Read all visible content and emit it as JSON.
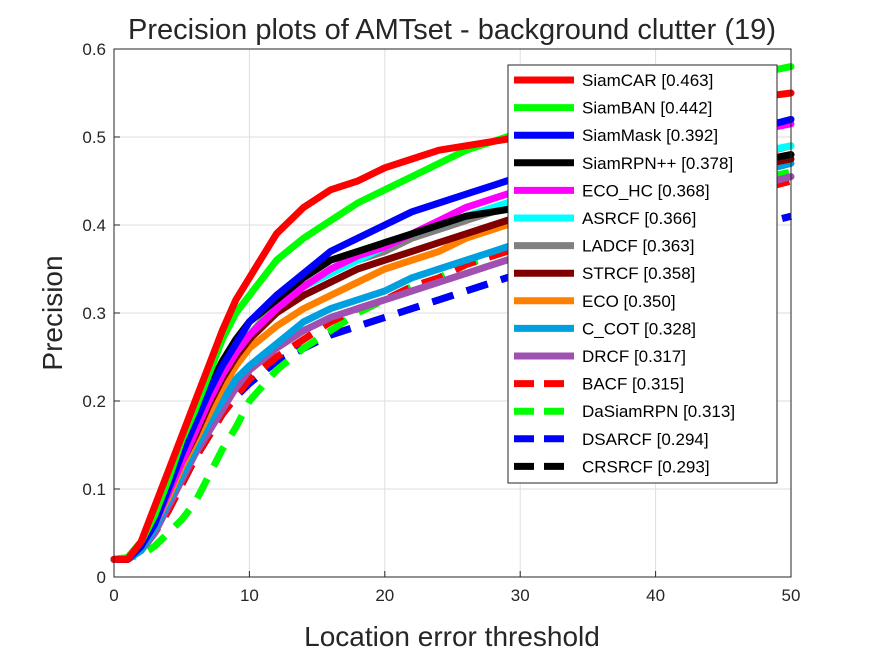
{
  "chart_data": {
    "type": "line",
    "title": "Precision plots of AMTset - background clutter (19)",
    "xlabel": "Location error threshold",
    "ylabel": "Precision",
    "xlim": [
      0,
      50
    ],
    "ylim": [
      0,
      0.6
    ],
    "x_ticks": [
      "0",
      "10",
      "20",
      "30",
      "40",
      "50"
    ],
    "y_ticks": [
      "0",
      "0.1",
      "0.2",
      "0.3",
      "0.4",
      "0.5",
      "0.6"
    ],
    "grid": true,
    "legend_position": "top-right",
    "x": [
      0,
      1,
      2,
      3,
      4,
      5,
      6,
      7,
      8,
      9,
      10,
      12,
      14,
      16,
      18,
      20,
      22,
      24,
      26,
      28,
      30,
      35,
      40,
      45,
      50
    ],
    "series": [
      {
        "name": "SiamCAR [0.463]",
        "color": "#ff0000",
        "dash": "solid",
        "values": [
          0.02,
          0.02,
          0.04,
          0.08,
          0.12,
          0.16,
          0.2,
          0.24,
          0.28,
          0.315,
          0.34,
          0.39,
          0.42,
          0.44,
          0.45,
          0.465,
          0.475,
          0.485,
          0.49,
          0.495,
          0.5,
          0.52,
          0.53,
          0.54,
          0.55
        ]
      },
      {
        "name": "SiamBAN [0.442]",
        "color": "#00ff00",
        "dash": "solid",
        "values": [
          0.02,
          0.022,
          0.04,
          0.07,
          0.11,
          0.155,
          0.19,
          0.23,
          0.27,
          0.3,
          0.32,
          0.36,
          0.385,
          0.405,
          0.425,
          0.44,
          0.455,
          0.47,
          0.485,
          0.495,
          0.505,
          0.53,
          0.55,
          0.565,
          0.58
        ]
      },
      {
        "name": "SiamMask [0.392]",
        "color": "#0000ff",
        "dash": "solid",
        "values": [
          0.02,
          0.02,
          0.035,
          0.06,
          0.1,
          0.14,
          0.175,
          0.21,
          0.24,
          0.265,
          0.29,
          0.32,
          0.345,
          0.37,
          0.385,
          0.4,
          0.415,
          0.425,
          0.435,
          0.445,
          0.455,
          0.47,
          0.485,
          0.5,
          0.52
        ]
      },
      {
        "name": "SiamRPN++ [0.378]",
        "color": "#000000",
        "dash": "solid",
        "values": [
          0.02,
          0.02,
          0.035,
          0.065,
          0.1,
          0.14,
          0.18,
          0.215,
          0.245,
          0.27,
          0.29,
          0.315,
          0.34,
          0.36,
          0.37,
          0.38,
          0.39,
          0.4,
          0.41,
          0.415,
          0.42,
          0.435,
          0.45,
          0.465,
          0.48
        ]
      },
      {
        "name": "ECO_HC [0.368]",
        "color": "#ff00ff",
        "dash": "solid",
        "values": [
          0.02,
          0.02,
          0.035,
          0.06,
          0.095,
          0.13,
          0.165,
          0.2,
          0.23,
          0.255,
          0.275,
          0.305,
          0.33,
          0.35,
          0.365,
          0.375,
          0.39,
          0.405,
          0.42,
          0.43,
          0.44,
          0.46,
          0.48,
          0.5,
          0.515
        ]
      },
      {
        "name": "ASRCF [0.366]",
        "color": "#00ffff",
        "dash": "solid",
        "values": [
          0.02,
          0.02,
          0.035,
          0.06,
          0.095,
          0.13,
          0.165,
          0.2,
          0.23,
          0.255,
          0.275,
          0.305,
          0.33,
          0.345,
          0.36,
          0.375,
          0.39,
          0.4,
          0.41,
          0.42,
          0.43,
          0.445,
          0.46,
          0.475,
          0.49
        ]
      },
      {
        "name": "LADCF [0.363]",
        "color": "#808080",
        "dash": "solid",
        "values": [
          0.02,
          0.02,
          0.035,
          0.06,
          0.095,
          0.13,
          0.165,
          0.2,
          0.23,
          0.255,
          0.275,
          0.31,
          0.33,
          0.345,
          0.36,
          0.37,
          0.385,
          0.395,
          0.405,
          0.415,
          0.425,
          0.44,
          0.455,
          0.465,
          0.48
        ]
      },
      {
        "name": "STRCF [0.358]",
        "color": "#800000",
        "dash": "solid",
        "values": [
          0.02,
          0.02,
          0.035,
          0.06,
          0.095,
          0.13,
          0.16,
          0.195,
          0.225,
          0.25,
          0.27,
          0.3,
          0.32,
          0.335,
          0.35,
          0.36,
          0.37,
          0.38,
          0.39,
          0.4,
          0.41,
          0.43,
          0.445,
          0.46,
          0.475
        ]
      },
      {
        "name": "ECO [0.350]",
        "color": "#ff8000",
        "dash": "solid",
        "values": [
          0.02,
          0.02,
          0.035,
          0.06,
          0.09,
          0.125,
          0.155,
          0.185,
          0.215,
          0.24,
          0.26,
          0.285,
          0.305,
          0.32,
          0.335,
          0.35,
          0.36,
          0.37,
          0.385,
          0.395,
          0.405,
          0.43,
          0.45,
          0.47,
          0.49
        ]
      },
      {
        "name": "C_COT [0.328]",
        "color": "#00a0e0",
        "dash": "solid",
        "values": [
          0.02,
          0.02,
          0.03,
          0.055,
          0.085,
          0.115,
          0.145,
          0.175,
          0.2,
          0.225,
          0.24,
          0.265,
          0.29,
          0.305,
          0.315,
          0.325,
          0.34,
          0.35,
          0.36,
          0.37,
          0.38,
          0.405,
          0.43,
          0.45,
          0.47
        ]
      },
      {
        "name": "DRCF [0.317]",
        "color": "#a050b0",
        "dash": "solid",
        "values": [
          0.02,
          0.02,
          0.03,
          0.05,
          0.08,
          0.11,
          0.14,
          0.165,
          0.19,
          0.215,
          0.235,
          0.26,
          0.28,
          0.295,
          0.305,
          0.315,
          0.325,
          0.335,
          0.345,
          0.355,
          0.365,
          0.39,
          0.41,
          0.435,
          0.455
        ]
      },
      {
        "name": "BACF [0.315]",
        "color": "#ff0000",
        "dash": "dashed",
        "values": [
          0.02,
          0.02,
          0.03,
          0.05,
          0.075,
          0.105,
          0.135,
          0.16,
          0.185,
          0.205,
          0.225,
          0.25,
          0.27,
          0.29,
          0.305,
          0.315,
          0.33,
          0.34,
          0.355,
          0.365,
          0.375,
          0.39,
          0.41,
          0.43,
          0.45
        ]
      },
      {
        "name": "DaSiamRPN [0.313]",
        "color": "#00ff00",
        "dash": "dashed",
        "values": [
          0.02,
          0.022,
          0.025,
          0.035,
          0.05,
          0.065,
          0.085,
          0.115,
          0.145,
          0.17,
          0.2,
          0.235,
          0.26,
          0.28,
          0.3,
          0.315,
          0.33,
          0.34,
          0.355,
          0.365,
          0.375,
          0.4,
          0.425,
          0.445,
          0.46
        ]
      },
      {
        "name": "DSARCF [0.294]",
        "color": "#0000ff",
        "dash": "dashed",
        "values": [
          0.02,
          0.02,
          0.03,
          0.05,
          0.075,
          0.105,
          0.135,
          0.16,
          0.185,
          0.205,
          0.22,
          0.245,
          0.26,
          0.275,
          0.285,
          0.295,
          0.305,
          0.315,
          0.325,
          0.335,
          0.345,
          0.36,
          0.375,
          0.39,
          0.41
        ]
      },
      {
        "name": "CRSRCF [0.293]",
        "color": "#000000",
        "dash": "dashed",
        "values": [
          0.02,
          0.02,
          0.03,
          0.05,
          0.075,
          0.105,
          0.135,
          0.16,
          0.185,
          0.205,
          0.22,
          0.245,
          0.26,
          0.275,
          0.285,
          0.295,
          0.305,
          0.315,
          0.325,
          0.335,
          0.345,
          0.36,
          0.375,
          0.39,
          0.41
        ]
      }
    ]
  }
}
